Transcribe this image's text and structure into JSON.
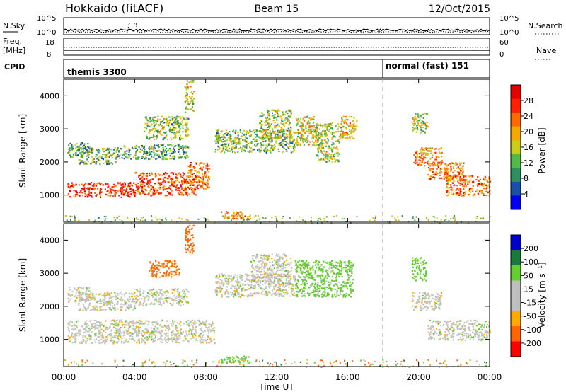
{
  "header": {
    "station": "Hokkaido (fitACF)",
    "beam": "Beam 15",
    "date": "12/Oct/2015"
  },
  "top_panels": {
    "nsky_label": "N.Sky",
    "nsky_ticks": [
      "10^5",
      "10^0"
    ],
    "nsearch_label": "N.Search",
    "freq_label": "Freq.",
    "freq_unit": "[MHz]",
    "freq_ticks": [
      "18",
      "8"
    ],
    "nave_label": "Nave",
    "nave_ticks": [
      "60",
      "0"
    ],
    "cpid_label": "CPID",
    "cpid_segments": [
      {
        "label": "themis 3300",
        "start_hour": 0,
        "end_hour": 18
      },
      {
        "label": "normal (fast) 151",
        "start_hour": 18,
        "end_hour": 24
      }
    ]
  },
  "colors": {
    "power_scale": [
      "#0000ee",
      "#1e4fa8",
      "#2f8f5f",
      "#55b84a",
      "#c8cc1a",
      "#f5a800",
      "#ff6a00",
      "#ff2200",
      "#e60000"
    ],
    "velocity_scale": [
      "#0000cc",
      "#1a7a3a",
      "#66cc33",
      "#bfbfbf",
      "#bfbfbf",
      "#ffaa00",
      "#ff6600",
      "#ff0000"
    ],
    "grey": "#c4c4c0"
  },
  "chart_data": [
    {
      "type": "heatmap",
      "title": "Power",
      "ylabel": "Slant Range [km]",
      "xlabel": "Time UT",
      "x_range_hours": [
        0,
        24
      ],
      "ylim": [
        180,
        4500
      ],
      "y_ticks": [
        "1000",
        "2000",
        "3000",
        "4000"
      ],
      "x_ticks": [
        "00:00",
        "04:00",
        "08:00",
        "12:00",
        "16:00",
        "20:00",
        "00:00"
      ],
      "colorbar": {
        "label": "Power [dB]",
        "ticks": [
          "28",
          "24",
          "20",
          "16",
          "12",
          "8",
          "4"
        ],
        "range": [
          0,
          32
        ]
      },
      "blobs": [
        {
          "t0": 0.2,
          "t1": 4.0,
          "r0": 950,
          "r1": 1400,
          "value": 27
        },
        {
          "t0": 4.0,
          "t1": 7.5,
          "r0": 1000,
          "r1": 1700,
          "value": 26
        },
        {
          "t0": 7.0,
          "t1": 8.2,
          "r0": 1200,
          "r1": 2000,
          "value": 23
        },
        {
          "t0": 0.8,
          "t1": 3.0,
          "r0": 1950,
          "r1": 2450,
          "value": 12
        },
        {
          "t0": 3.0,
          "t1": 7.0,
          "r0": 2100,
          "r1": 2550,
          "value": 11
        },
        {
          "t0": 0.2,
          "t1": 1.5,
          "r0": 2150,
          "r1": 2600,
          "value": 10
        },
        {
          "t0": 4.5,
          "t1": 7.0,
          "r0": 2700,
          "r1": 3400,
          "value": 14
        },
        {
          "t0": 6.8,
          "t1": 7.3,
          "r0": 3500,
          "r1": 4500,
          "value": 16
        },
        {
          "t0": 8.5,
          "t1": 13.0,
          "r0": 2300,
          "r1": 3000,
          "value": 13
        },
        {
          "t0": 11.0,
          "t1": 12.8,
          "r0": 2700,
          "r1": 3600,
          "value": 15
        },
        {
          "t0": 13.0,
          "t1": 14.2,
          "r0": 2500,
          "r1": 3400,
          "value": 17
        },
        {
          "t0": 14.2,
          "t1": 15.5,
          "r0": 2000,
          "r1": 3200,
          "value": 15
        },
        {
          "t0": 15.5,
          "t1": 16.5,
          "r0": 2700,
          "r1": 3400,
          "value": 19
        },
        {
          "t0": 8.8,
          "t1": 10.5,
          "r0": 300,
          "r1": 520,
          "value": 21
        },
        {
          "t0": 19.7,
          "t1": 21.3,
          "r0": 1900,
          "r1": 2450,
          "value": 21
        },
        {
          "t0": 20.5,
          "t1": 22.5,
          "r0": 1500,
          "r1": 2000,
          "value": 22
        },
        {
          "t0": 21.5,
          "t1": 24.0,
          "r0": 1000,
          "r1": 1600,
          "value": 23
        },
        {
          "t0": 19.6,
          "t1": 20.5,
          "r0": 2900,
          "r1": 3500,
          "value": 14
        }
      ]
    },
    {
      "type": "heatmap",
      "title": "Velocity",
      "ylabel": "Slant Range [km]",
      "xlabel": "Time UT",
      "x_range_hours": [
        0,
        24
      ],
      "ylim": [
        180,
        4500
      ],
      "y_ticks": [
        "1000",
        "2000",
        "3000",
        "4000"
      ],
      "x_ticks": [
        "00:00",
        "04:00",
        "08:00",
        "12:00",
        "16:00",
        "20:00",
        "00:00"
      ],
      "colorbar": {
        "label": "Velocity [m s⁻¹]",
        "ticks": [
          "200",
          "100",
          "50",
          "15",
          "-15",
          "-50",
          "-100",
          "-200"
        ],
        "range": [
          -250,
          250
        ]
      },
      "blobs": [
        {
          "t0": 0.2,
          "t1": 8.5,
          "r0": 900,
          "r1": 1600,
          "value": 0
        },
        {
          "t0": 0.8,
          "t1": 4.0,
          "r0": 1900,
          "r1": 2450,
          "value": 0
        },
        {
          "t0": 4.0,
          "t1": 7.0,
          "r0": 2050,
          "r1": 2550,
          "value": 0
        },
        {
          "t0": 0.2,
          "t1": 1.5,
          "r0": 2150,
          "r1": 2600,
          "value": 0
        },
        {
          "t0": 8.5,
          "t1": 13.0,
          "r0": 2300,
          "r1": 3000,
          "value": 0
        },
        {
          "t0": 10.5,
          "t1": 12.8,
          "r0": 2700,
          "r1": 3600,
          "value": 0
        },
        {
          "t0": 13.0,
          "t1": 16.3,
          "r0": 2300,
          "r1": 3400,
          "value": 30
        },
        {
          "t0": 4.8,
          "t1": 6.5,
          "r0": 2900,
          "r1": 3400,
          "value": -60
        },
        {
          "t0": 6.8,
          "t1": 7.3,
          "r0": 3600,
          "r1": 4500,
          "value": -70
        },
        {
          "t0": 8.8,
          "t1": 10.5,
          "r0": 300,
          "r1": 520,
          "value": 40
        },
        {
          "t0": 19.6,
          "t1": 21.3,
          "r0": 1900,
          "r1": 2450,
          "value": 0
        },
        {
          "t0": 20.5,
          "t1": 24.0,
          "r0": 1000,
          "r1": 1600,
          "value": 0
        },
        {
          "t0": 19.6,
          "t1": 20.4,
          "r0": 2800,
          "r1": 3500,
          "value": 40
        }
      ]
    }
  ]
}
